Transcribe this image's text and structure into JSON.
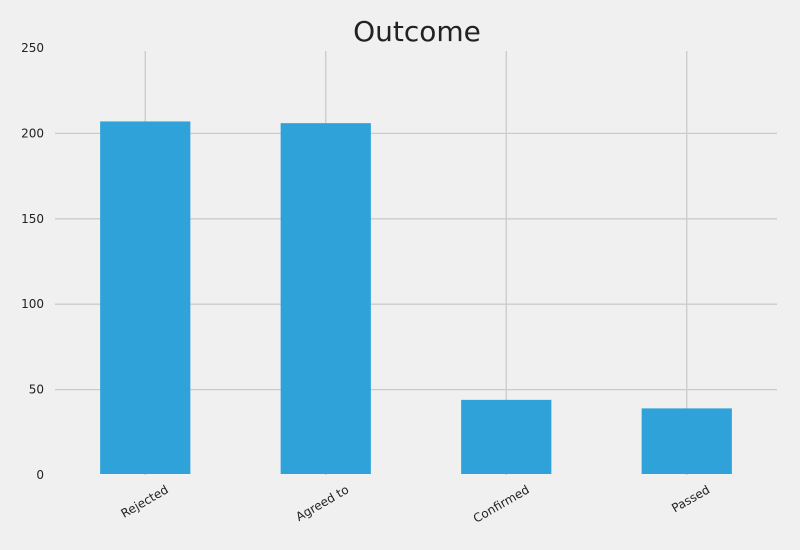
{
  "chart_data": {
    "type": "bar",
    "title": "Outcome",
    "xlabel": "",
    "ylabel": "",
    "categories": [
      "Rejected",
      "Agreed to",
      "Confirmed",
      "Passed"
    ],
    "values": [
      207,
      206,
      44,
      39
    ],
    "yticks": [
      "0",
      "50",
      "100",
      "150",
      "200",
      "250"
    ],
    "ylim": [
      0,
      250
    ],
    "grid": true,
    "legend": "none",
    "bar_color": "#30a2da",
    "grid_color": "#cbcbcb",
    "background_color": "#f0f0f0"
  }
}
